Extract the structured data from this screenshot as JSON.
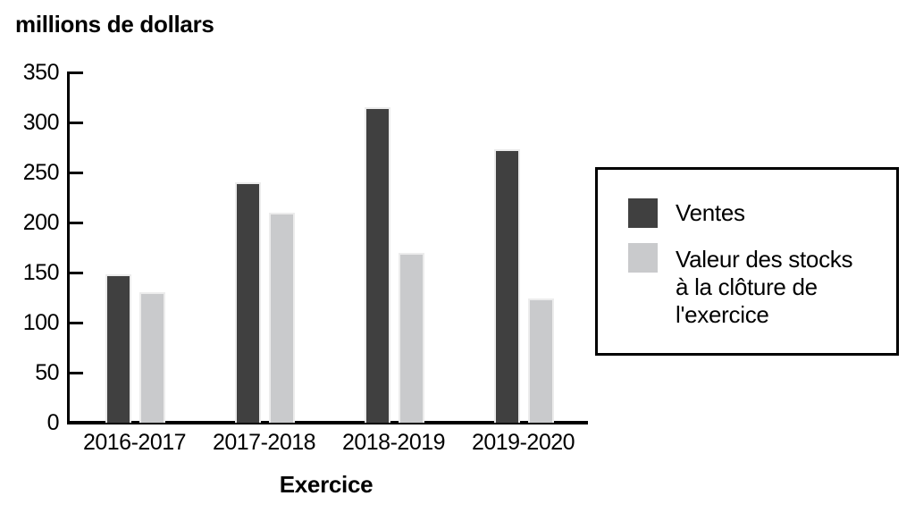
{
  "chart_data": {
    "type": "bar",
    "title": "millions de dollars",
    "xlabel": "Exercice",
    "ylabel": "millions de dollars",
    "categories": [
      "2016-2017",
      "2017-2018",
      "2018-2019",
      "2019-2020"
    ],
    "series": [
      {
        "name": "Ventes",
        "color": "#404040",
        "values": [
          148,
          240,
          315,
          273
        ]
      },
      {
        "name": "Valeur des stocks à la clôture de l'exercice",
        "color": "#c9cacc",
        "values": [
          130,
          210,
          170,
          124
        ]
      }
    ],
    "ylim": [
      0,
      350
    ],
    "ytick_step": 50,
    "grid": false,
    "legend_position": "right",
    "legend_labels": [
      "Ventes",
      "Valeur des stocks\nà la clôture de\nl'exercice"
    ],
    "axis_color": "#000000",
    "background_color": "#ffffff"
  }
}
